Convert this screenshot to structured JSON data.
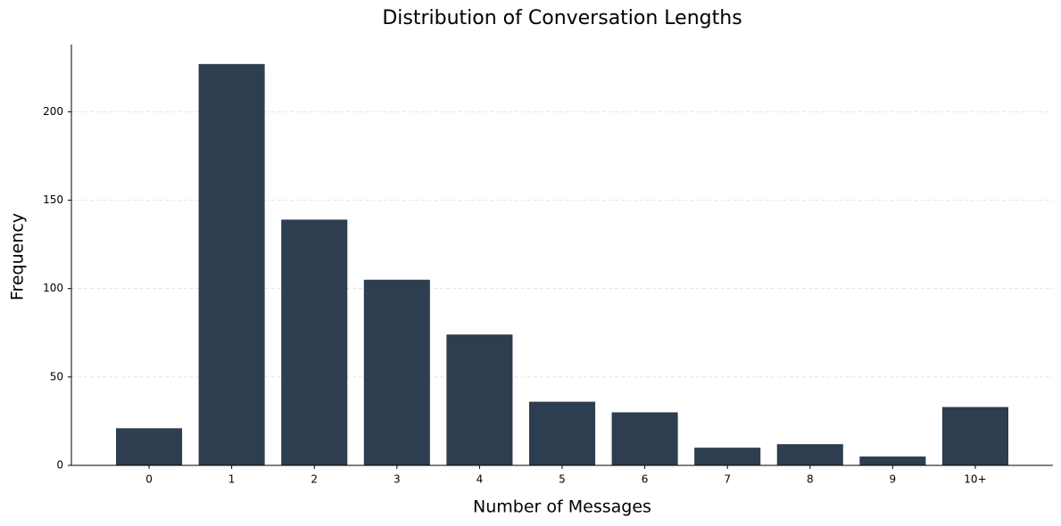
{
  "chart_data": {
    "type": "bar",
    "title": "Distribution of Conversation Lengths",
    "x_label": "Number of Messages",
    "y_label": "Frequency",
    "categories": [
      "0",
      "1",
      "2",
      "3",
      "4",
      "5",
      "6",
      "7",
      "8",
      "9",
      "10+"
    ],
    "values": [
      21,
      227,
      139,
      105,
      74,
      36,
      30,
      10,
      12,
      5,
      33
    ],
    "color": "#2c3e50",
    "ylim": [
      0,
      238
    ],
    "yticks": [
      0,
      50,
      100,
      150,
      200
    ],
    "grid": true
  }
}
